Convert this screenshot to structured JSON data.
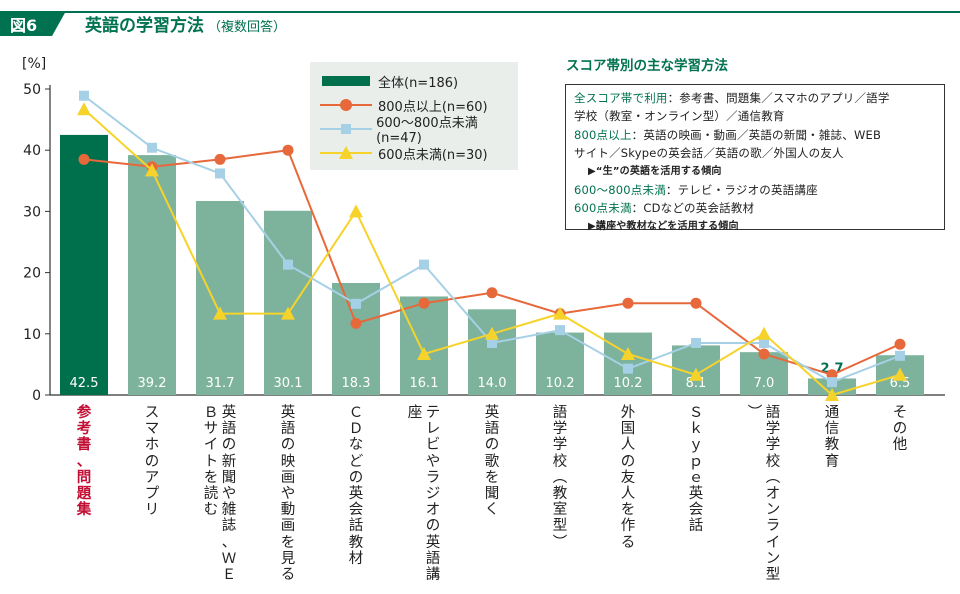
{
  "header": {
    "figure_label": "図6",
    "title": "英語の学習方法",
    "subtitle": "（複数回答）"
  },
  "colors": {
    "accent": "#007250",
    "bar_main": "#006f4b",
    "bar_other": "#7db39c",
    "series_800": "#e7683a",
    "series_600_800": "#a6d0e6",
    "series_600": "#f6d32b",
    "highlight_text": "#c20f36"
  },
  "chart_data": {
    "type": "bar",
    "title": "英語の学習方法（複数回答）",
    "ylabel": "[%]",
    "ylim": [
      0,
      50
    ],
    "yticks": [
      "0",
      "10",
      "20",
      "30",
      "40",
      "50"
    ],
    "categories": [
      "参考書、問題集",
      "スマホのアプリ",
      "英語の新聞や雑誌、WEBサイトを読む",
      "英語の映画や動画を見る",
      "CDなどの英会話教材",
      "テレビやラジオの英語講座",
      "英語の歌を聞く",
      "語学学校（教室型）",
      "外国人の友人を作る",
      "Skype英会話",
      "語学学校（オンライン型）",
      "通信教育",
      "その他"
    ],
    "axis_labels": [
      "参考書、問題集",
      "スマホのアプリ",
      "英語の新聞や雑誌、ＷＥＢサイトを読む",
      "英語の映画や動画を見る",
      "ＣＤなどの英会話教材",
      "テレビやラジオの英語講座",
      "英語の歌を聞く",
      "語学学校︵教室型︶",
      "外国人の友人を作る",
      "Ｓｋｙｐｅ英会話",
      "語学学校︵オンライン型︶",
      "通信教育",
      "その他"
    ],
    "series": [
      {
        "name": "全体(n=186)",
        "kind": "bar",
        "values": [
          42.5,
          39.2,
          31.7,
          30.1,
          18.3,
          16.1,
          14.0,
          10.2,
          10.2,
          8.1,
          7.0,
          2.7,
          6.5
        ],
        "labels": [
          "42.5",
          "39.2",
          "31.7",
          "30.1",
          "18.3",
          "16.1",
          "14.0",
          "10.2",
          "10.2",
          "8.1",
          "7.0",
          "2.7",
          "6.5"
        ]
      },
      {
        "name": "800点以上(n=60)",
        "kind": "line",
        "marker": "circle",
        "values": [
          38.5,
          37.3,
          38.5,
          40.0,
          11.7,
          15.0,
          16.7,
          13.3,
          15.0,
          15.0,
          6.7,
          3.3,
          8.3
        ]
      },
      {
        "name": "600〜800点未満(n=47)",
        "kind": "line",
        "marker": "square",
        "values": [
          48.9,
          40.4,
          36.2,
          21.3,
          14.9,
          21.3,
          8.5,
          10.6,
          4.3,
          8.5,
          8.5,
          2.1,
          6.4
        ]
      },
      {
        "name": "600点未満(n=30)",
        "kind": "line",
        "marker": "triangle",
        "values": [
          46.7,
          36.7,
          13.3,
          13.3,
          30.0,
          6.7,
          10.0,
          13.3,
          6.7,
          3.3,
          10.0,
          0.0,
          3.3
        ]
      }
    ]
  },
  "panel": {
    "title": "スコア帯別の主な学習方法",
    "all_label": "全スコア帯で利用",
    "all_text1": "：参考書、問題集／スマホのアプリ／語学",
    "all_text2": "学校（教室・オンライン型）／通信教育",
    "s800_label": "800点以上",
    "s800_text1": "：英語の映画・動画／英語の新聞・雑誌、WEB",
    "s800_text2": "サイト／Skypeの英会話／英語の歌／外国人の友人",
    "s800_note": "▶“生”の英語を活用する傾向",
    "s600_800_label": "600〜800点未満",
    "s600_800_text": "：テレビ・ラジオの英語講座",
    "s600_label": "600点未満",
    "s600_text": "：CDなどの英会話教材",
    "s600_note": "▶講座や教材などを活用する傾向"
  }
}
